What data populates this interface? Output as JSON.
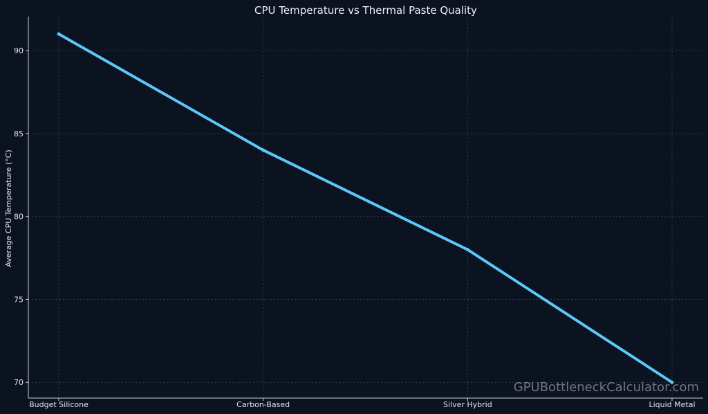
{
  "chart_data": {
    "type": "line",
    "title": "CPU Temperature vs Thermal Paste Quality",
    "xlabel": "",
    "ylabel": "Average CPU Temperature (°C)",
    "categories": [
      "Budget Silicone",
      "Carbon-Based",
      "Silver Hybrid",
      "Liquid Metal"
    ],
    "series": [
      {
        "values": [
          91,
          84,
          78,
          70
        ]
      }
    ],
    "ylim": [
      69.05,
      92.05
    ],
    "yticks": [
      70,
      75,
      80,
      85,
      90
    ],
    "ytick_labels": [
      "70",
      "75",
      "80",
      "85",
      "90"
    ],
    "grid": true,
    "legend": "none",
    "watermark": "GPUBottleneckCalculator.com",
    "colors": {
      "background": "#0b1220",
      "line": "#5ac8fa",
      "grid": "#3a4556",
      "axis": "#cfcfcf",
      "text": "#e6e6e6"
    }
  }
}
